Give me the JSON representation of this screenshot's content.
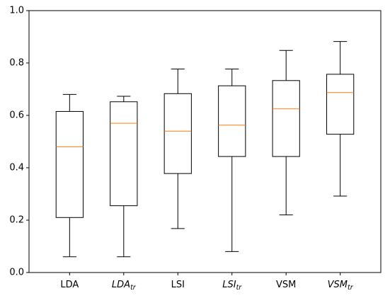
{
  "chart_data": {
    "type": "box",
    "title": "",
    "xlabel": "",
    "ylabel": "",
    "ylim": [
      0,
      1
    ],
    "yticks": [
      "0.0",
      "0.2",
      "0.4",
      "0.6",
      "0.8",
      "1.0"
    ],
    "grid": false,
    "categories": [
      {
        "base": "LDA",
        "sub": ""
      },
      {
        "base": "LDA",
        "sub": "tr"
      },
      {
        "base": "LSI",
        "sub": ""
      },
      {
        "base": "LSI",
        "sub": "tr"
      },
      {
        "base": "VSM",
        "sub": ""
      },
      {
        "base": "VSM",
        "sub": "tr"
      }
    ],
    "boxes": [
      {
        "whisker_low": 0.06,
        "q1": 0.21,
        "median": 0.48,
        "q3": 0.615,
        "whisker_high": 0.68
      },
      {
        "whisker_low": 0.06,
        "q1": 0.255,
        "median": 0.57,
        "q3": 0.652,
        "whisker_high": 0.673
      },
      {
        "whisker_low": 0.168,
        "q1": 0.378,
        "median": 0.54,
        "q3": 0.683,
        "whisker_high": 0.777
      },
      {
        "whisker_low": 0.08,
        "q1": 0.443,
        "median": 0.563,
        "q3": 0.713,
        "whisker_high": 0.777
      },
      {
        "whisker_low": 0.22,
        "q1": 0.443,
        "median": 0.625,
        "q3": 0.733,
        "whisker_high": 0.848
      },
      {
        "whisker_low": 0.292,
        "q1": 0.528,
        "median": 0.687,
        "q3": 0.757,
        "whisker_high": 0.882
      }
    ],
    "colors": {
      "box": "#000000",
      "median": "#ff7f0e"
    }
  }
}
